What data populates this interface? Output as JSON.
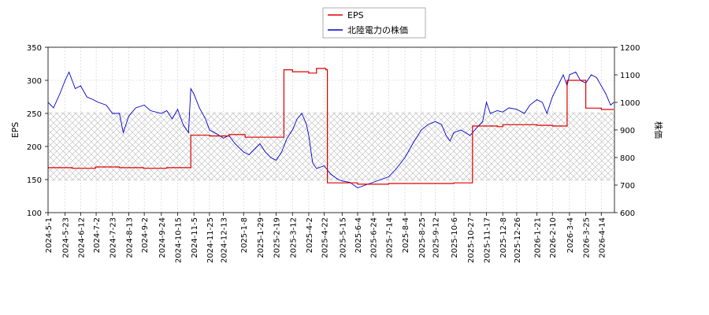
{
  "chart_data": {
    "type": "line",
    "legend_position": "top-center",
    "legend": [
      "EPS",
      "北陸電力の株価"
    ],
    "ylabel_left": "EPS",
    "ylabel_right": "株価",
    "ylim_left": [
      100,
      350
    ],
    "ylim_right": [
      600,
      1200
    ],
    "yticks_left": [
      100,
      150,
      200,
      250,
      300,
      350
    ],
    "yticks_right": [
      600,
      700,
      800,
      900,
      1000,
      1100,
      1200
    ],
    "grid": true,
    "hatched_band_left": [
      148,
      252
    ],
    "x_start": "2024-05-01",
    "x_end": "2026-05-01",
    "x_ticks": [
      "2024-5-1",
      "2024-5-23",
      "2024-6-12",
      "2024-7-2",
      "2024-7-23",
      "2024-8-13",
      "2024-9-2",
      "2024-9-24",
      "2024-10-15",
      "2024-11-5",
      "2024-11-25",
      "2024-12-13",
      "2025-1-8",
      "2025-1-29",
      "2025-2-19",
      "2025-3-12",
      "2025-4-2",
      "2025-4-22",
      "2025-5-15",
      "2025-6-4",
      "2025-6-24",
      "2025-7-14",
      "2025-8-4",
      "2025-8-25",
      "2025-9-12",
      "2025-10-6",
      "2025-10-27",
      "2025-11-17",
      "2025-12-8",
      "2025-12-26",
      "2026-1-21",
      "2026-2-10",
      "2026-3-4",
      "2026-3-25",
      "2026-4-14"
    ],
    "series": [
      {
        "name": "EPS",
        "axis": "left",
        "color": "#dd0000",
        "step": true,
        "points": [
          [
            "2024-05-01",
            168
          ],
          [
            "2024-06-01",
            167
          ],
          [
            "2024-07-01",
            169
          ],
          [
            "2024-08-01",
            168
          ],
          [
            "2024-09-01",
            167
          ],
          [
            "2024-10-01",
            168
          ],
          [
            "2024-11-01",
            217
          ],
          [
            "2024-11-25",
            216
          ],
          [
            "2024-12-20",
            218
          ],
          [
            "2025-01-10",
            214
          ],
          [
            "2025-02-20",
            214
          ],
          [
            "2025-03-01",
            316
          ],
          [
            "2025-03-12",
            313
          ],
          [
            "2025-04-02",
            311
          ],
          [
            "2025-04-12",
            318
          ],
          [
            "2025-04-24",
            316
          ],
          [
            "2025-04-26",
            145
          ],
          [
            "2025-06-04",
            143
          ],
          [
            "2025-07-14",
            144
          ],
          [
            "2025-08-25",
            144
          ],
          [
            "2025-10-06",
            145
          ],
          [
            "2025-10-27",
            145
          ],
          [
            "2025-10-30",
            231
          ],
          [
            "2025-12-01",
            230
          ],
          [
            "2025-12-08",
            233
          ],
          [
            "2026-01-21",
            232
          ],
          [
            "2026-02-10",
            231
          ],
          [
            "2026-03-01",
            300
          ],
          [
            "2026-03-25",
            258
          ],
          [
            "2026-04-14",
            256
          ],
          [
            "2026-04-30",
            256
          ]
        ]
      },
      {
        "name": "北陸電力の株価",
        "axis": "right",
        "color": "#0000cc",
        "step": false,
        "points": [
          [
            "2024-05-01",
            1000
          ],
          [
            "2024-05-08",
            980
          ],
          [
            "2024-05-16",
            1030
          ],
          [
            "2024-05-23",
            1080
          ],
          [
            "2024-05-28",
            1110
          ],
          [
            "2024-06-05",
            1050
          ],
          [
            "2024-06-12",
            1060
          ],
          [
            "2024-06-20",
            1020
          ],
          [
            "2024-06-28",
            1010
          ],
          [
            "2024-07-05",
            1000
          ],
          [
            "2024-07-15",
            990
          ],
          [
            "2024-07-23",
            960
          ],
          [
            "2024-08-01",
            960
          ],
          [
            "2024-08-06",
            890
          ],
          [
            "2024-08-13",
            950
          ],
          [
            "2024-08-22",
            980
          ],
          [
            "2024-09-02",
            990
          ],
          [
            "2024-09-10",
            970
          ],
          [
            "2024-09-24",
            960
          ],
          [
            "2024-10-01",
            970
          ],
          [
            "2024-10-08",
            940
          ],
          [
            "2024-10-15",
            975
          ],
          [
            "2024-10-22",
            920
          ],
          [
            "2024-10-29",
            890
          ],
          [
            "2024-11-01",
            1050
          ],
          [
            "2024-11-05",
            1030
          ],
          [
            "2024-11-12",
            980
          ],
          [
            "2024-11-20",
            940
          ],
          [
            "2024-11-25",
            900
          ],
          [
            "2024-12-05",
            885
          ],
          [
            "2024-12-13",
            870
          ],
          [
            "2024-12-20",
            880
          ],
          [
            "2024-12-28",
            850
          ],
          [
            "2025-01-08",
            820
          ],
          [
            "2025-01-15",
            810
          ],
          [
            "2025-01-22",
            830
          ],
          [
            "2025-01-29",
            850
          ],
          [
            "2025-02-05",
            820
          ],
          [
            "2025-02-12",
            800
          ],
          [
            "2025-02-19",
            790
          ],
          [
            "2025-02-26",
            820
          ],
          [
            "2025-03-05",
            870
          ],
          [
            "2025-03-12",
            900
          ],
          [
            "2025-03-18",
            940
          ],
          [
            "2025-03-24",
            960
          ],
          [
            "2025-03-30",
            920
          ],
          [
            "2025-04-02",
            880
          ],
          [
            "2025-04-07",
            780
          ],
          [
            "2025-04-12",
            760
          ],
          [
            "2025-04-22",
            770
          ],
          [
            "2025-04-30",
            740
          ],
          [
            "2025-05-10",
            720
          ],
          [
            "2025-05-15",
            715
          ],
          [
            "2025-05-25",
            710
          ],
          [
            "2025-06-04",
            690
          ],
          [
            "2025-06-14",
            700
          ],
          [
            "2025-06-24",
            710
          ],
          [
            "2025-07-04",
            720
          ],
          [
            "2025-07-14",
            730
          ],
          [
            "2025-07-24",
            760
          ],
          [
            "2025-08-04",
            800
          ],
          [
            "2025-08-14",
            850
          ],
          [
            "2025-08-25",
            900
          ],
          [
            "2025-09-03",
            920
          ],
          [
            "2025-09-12",
            930
          ],
          [
            "2025-09-20",
            920
          ],
          [
            "2025-09-26",
            880
          ],
          [
            "2025-10-01",
            860
          ],
          [
            "2025-10-06",
            890
          ],
          [
            "2025-10-15",
            900
          ],
          [
            "2025-10-27",
            880
          ],
          [
            "2025-11-05",
            910
          ],
          [
            "2025-11-12",
            930
          ],
          [
            "2025-11-17",
            1000
          ],
          [
            "2025-11-22",
            960
          ],
          [
            "2025-12-01",
            970
          ],
          [
            "2025-12-08",
            965
          ],
          [
            "2025-12-16",
            980
          ],
          [
            "2025-12-26",
            975
          ],
          [
            "2026-01-05",
            960
          ],
          [
            "2026-01-12",
            990
          ],
          [
            "2026-01-21",
            1010
          ],
          [
            "2026-01-28",
            1000
          ],
          [
            "2026-02-03",
            960
          ],
          [
            "2026-02-10",
            1020
          ],
          [
            "2026-02-17",
            1060
          ],
          [
            "2026-02-24",
            1100
          ],
          [
            "2026-03-01",
            1060
          ],
          [
            "2026-03-04",
            1100
          ],
          [
            "2026-03-12",
            1110
          ],
          [
            "2026-03-18",
            1080
          ],
          [
            "2026-03-25",
            1070
          ],
          [
            "2026-04-01",
            1100
          ],
          [
            "2026-04-08",
            1090
          ],
          [
            "2026-04-14",
            1060
          ],
          [
            "2026-04-20",
            1030
          ],
          [
            "2026-04-26",
            990
          ],
          [
            "2026-04-30",
            1000
          ]
        ]
      }
    ]
  }
}
